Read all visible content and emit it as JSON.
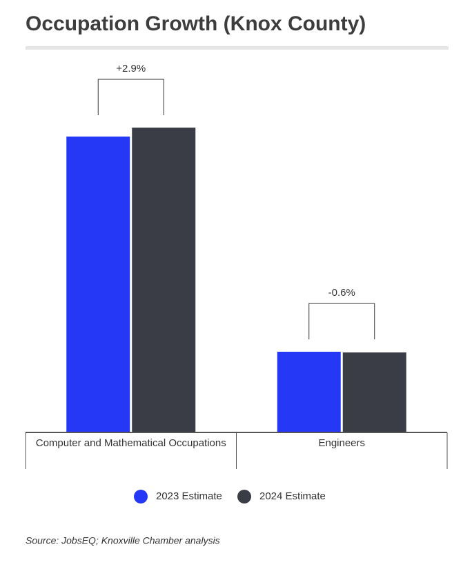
{
  "chart_data": {
    "type": "bar",
    "title": "Occupation Growth (Knox County)",
    "categories": [
      "Computer and Mathematical Occupations",
      "Engineers"
    ],
    "series": [
      {
        "name": "2023 Estimate",
        "color": "#2438f5",
        "values": [
          429,
          117
        ]
      },
      {
        "name": "2024 Estimate",
        "color": "#3a3d46",
        "values": [
          442,
          116
        ]
      }
    ],
    "annotations": [
      "+2.9%",
      "-0.6%"
    ],
    "ylim": [
      0,
      460
    ],
    "source": "Source: JobsEQ; Knoxville Chamber analysis"
  }
}
